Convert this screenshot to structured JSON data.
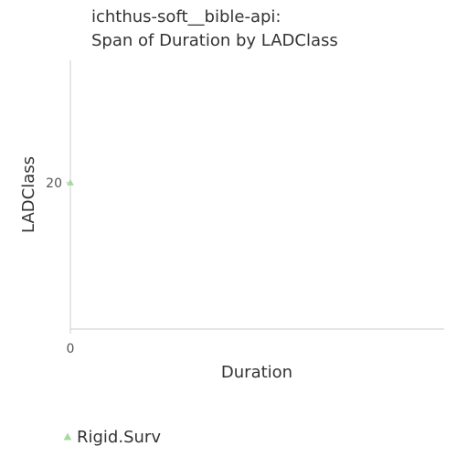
{
  "chart_data": {
    "type": "scatter",
    "title_lines": [
      "ichthus-soft__bible-api:",
      "Span of Duration by LADClass"
    ],
    "xlabel": "Duration",
    "ylabel": "LADClass",
    "x_ticks": [
      {
        "value": 0,
        "label": "0"
      }
    ],
    "y_ticks": [
      {
        "value": 20,
        "label": "20"
      }
    ],
    "xlim": [
      0,
      1
    ],
    "ylim": [
      0,
      36.7
    ],
    "grid": false,
    "legend_position": "bottom-left",
    "series": [
      {
        "name": "Rigid.Surv",
        "marker": "triangle",
        "color": "#a6d9a0",
        "points": [
          {
            "x": 0,
            "y": 20
          }
        ]
      }
    ]
  }
}
